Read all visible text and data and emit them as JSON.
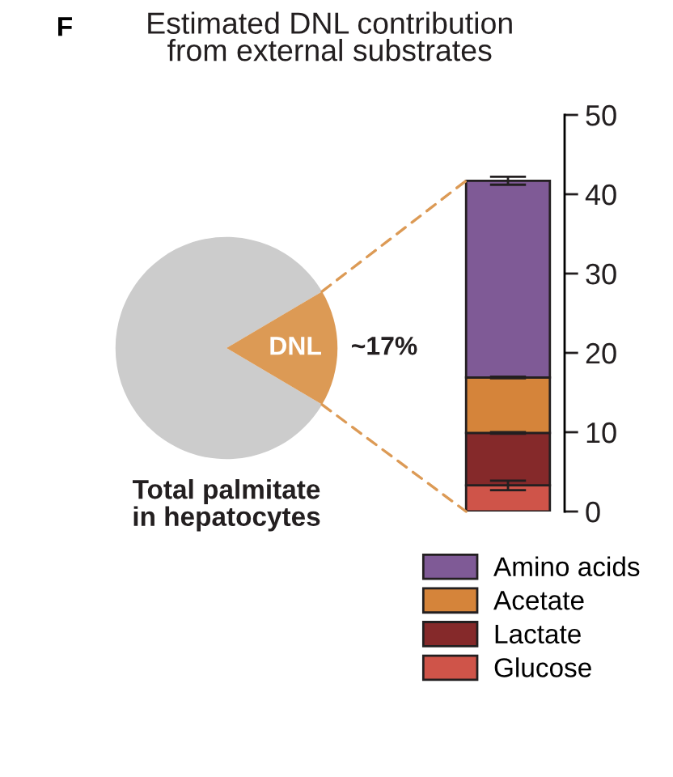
{
  "chart_data": [
    {
      "type": "pie",
      "title": "Estimated DNL contribution\nfrom external substrates",
      "xlabel": "Total palmitate\nin hepatocytes",
      "annotations": [
        "F"
      ],
      "categories": [
        null,
        "DNL"
      ],
      "values": [
        83,
        17
      ],
      "colors": [
        "#cccccc",
        "#dc9a55"
      ],
      "value_labels": [
        null,
        "~17%"
      ],
      "legend": false
    },
    {
      "type": "bar",
      "stacked": true,
      "categories": [
        null
      ],
      "series": [
        {
          "name": "Glucose",
          "color": "#cf5449",
          "values": [
            3.3
          ],
          "errors": [
            0.6
          ]
        },
        {
          "name": "Lactate",
          "color": "#85292a",
          "values": [
            6.6
          ],
          "errors": [
            0.1
          ]
        },
        {
          "name": "Acetate",
          "color": "#d5843a",
          "values": [
            7.0
          ],
          "errors": [
            0.1
          ]
        },
        {
          "name": "Amino acids",
          "color": "#7f5a96",
          "values": [
            24.8
          ],
          "errors": [
            0.5
          ]
        }
      ],
      "ylim": [
        0,
        50
      ],
      "yticks": [
        0,
        10,
        20,
        30,
        40,
        50
      ],
      "legend": "bottom"
    }
  ]
}
